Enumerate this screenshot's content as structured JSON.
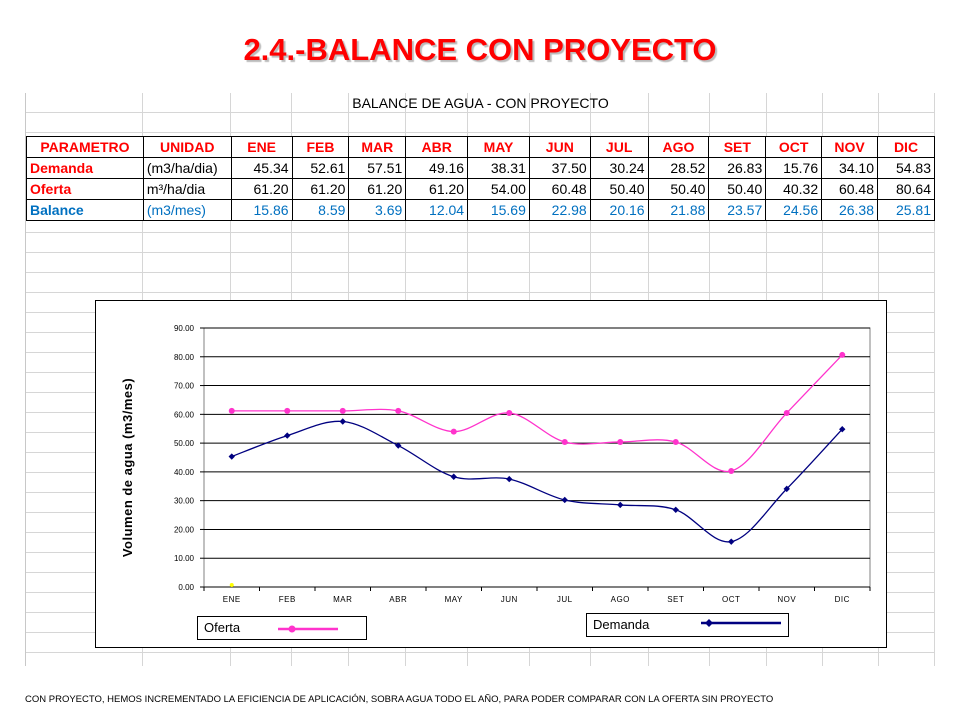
{
  "slide": {
    "title": "2.4.-BALANCE CON PROYECTO",
    "footer": "CON PROYECTO, HEMOS INCREMENTADO LA EFICIENCIA DE APLICACIÓN, SOBRA AGUA TODO EL AÑO, PARA PODER COMPARAR CON LA OFERTA SIN PROYECTO"
  },
  "table": {
    "title": "BALANCE DE AGUA - CON PROYECTO",
    "headers": [
      "PARAMETRO",
      "UNIDAD",
      "ENE",
      "FEB",
      "MAR",
      "ABR",
      "MAY",
      "JUN",
      "JUL",
      "AGO",
      "SET",
      "OCT",
      "NOV",
      "DIC"
    ],
    "rows": [
      {
        "parametro": "Demanda",
        "unidad": "(m3/ha/dia)",
        "values": [
          "45.34",
          "52.61",
          "57.51",
          "49.16",
          "38.31",
          "37.50",
          "30.24",
          "28.52",
          "26.83",
          "15.76",
          "34.10",
          "54.83"
        ]
      },
      {
        "parametro": "Oferta",
        "unidad": "m³/ha/dia",
        "values": [
          "61.20",
          "61.20",
          "61.20",
          "61.20",
          "54.00",
          "60.48",
          "50.40",
          "50.40",
          "50.40",
          "40.32",
          "60.48",
          "80.64"
        ]
      },
      {
        "parametro": "Balance",
        "unidad": "(m3/mes)",
        "values": [
          "15.86",
          "8.59",
          "3.69",
          "12.04",
          "15.69",
          "22.98",
          "20.16",
          "21.88",
          "23.57",
          "24.56",
          "26.38",
          "25.81"
        ]
      }
    ]
  },
  "colors": {
    "oferta": "#ff33cc",
    "demanda": "#000080",
    "header_text": "#ff0000",
    "balance_text": "#0070c0",
    "plot_bg": "#ffffff"
  },
  "chart_data": {
    "type": "line",
    "ylabel": "Volumen de agua (m3/mes)",
    "categories": [
      "ENE",
      "FEB",
      "MAR",
      "ABR",
      "MAY",
      "JUN",
      "JUL",
      "AGO",
      "SET",
      "OCT",
      "NOV",
      "DIC"
    ],
    "ylim": [
      0,
      90
    ],
    "yticks": [
      "0.00",
      "10.00",
      "20.00",
      "30.00",
      "40.00",
      "50.00",
      "60.00",
      "70.00",
      "80.00",
      "90.00"
    ],
    "grid": true,
    "legend": "bottom",
    "series": [
      {
        "name": "Oferta",
        "color": "#ff33cc",
        "marker": "circle",
        "values": [
          61.2,
          61.2,
          61.2,
          61.2,
          54.0,
          60.48,
          50.4,
          50.4,
          50.4,
          40.32,
          60.48,
          80.64
        ]
      },
      {
        "name": "Demanda",
        "color": "#000080",
        "marker": "diamond",
        "values": [
          45.34,
          52.61,
          57.51,
          49.16,
          38.31,
          37.5,
          30.24,
          28.52,
          26.83,
          15.76,
          34.1,
          54.83
        ]
      }
    ]
  }
}
